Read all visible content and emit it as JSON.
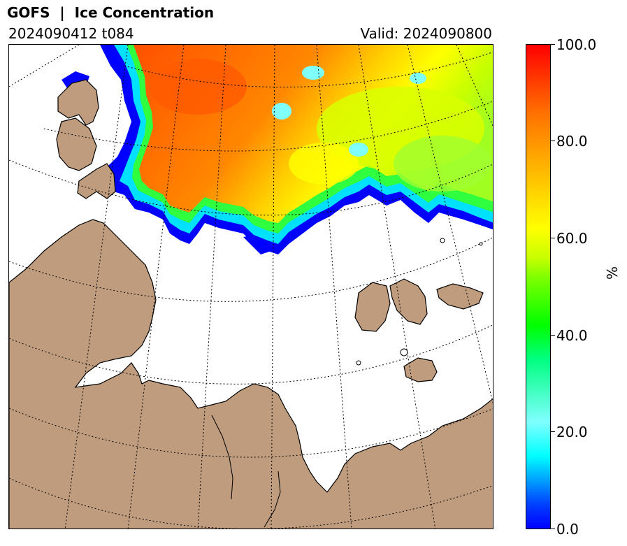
{
  "header": {
    "title": "GOFS  |  Ice Concentration",
    "run": "2024090412 t084",
    "valid": "Valid: 2024090800"
  },
  "colorbar": {
    "unit": "%",
    "ticks": [
      "100.0",
      "80.0",
      "60.0",
      "40.0",
      "20.0",
      "0.0"
    ],
    "min": 0,
    "max": 100
  },
  "colors": {
    "land": "#bf9c7e",
    "ocean": "#ffffff",
    "ice_high": "#ff4000",
    "ice_mid": "#ffff00",
    "ice_low": "#00ff00",
    "ice_edge": "#0000ff"
  }
}
